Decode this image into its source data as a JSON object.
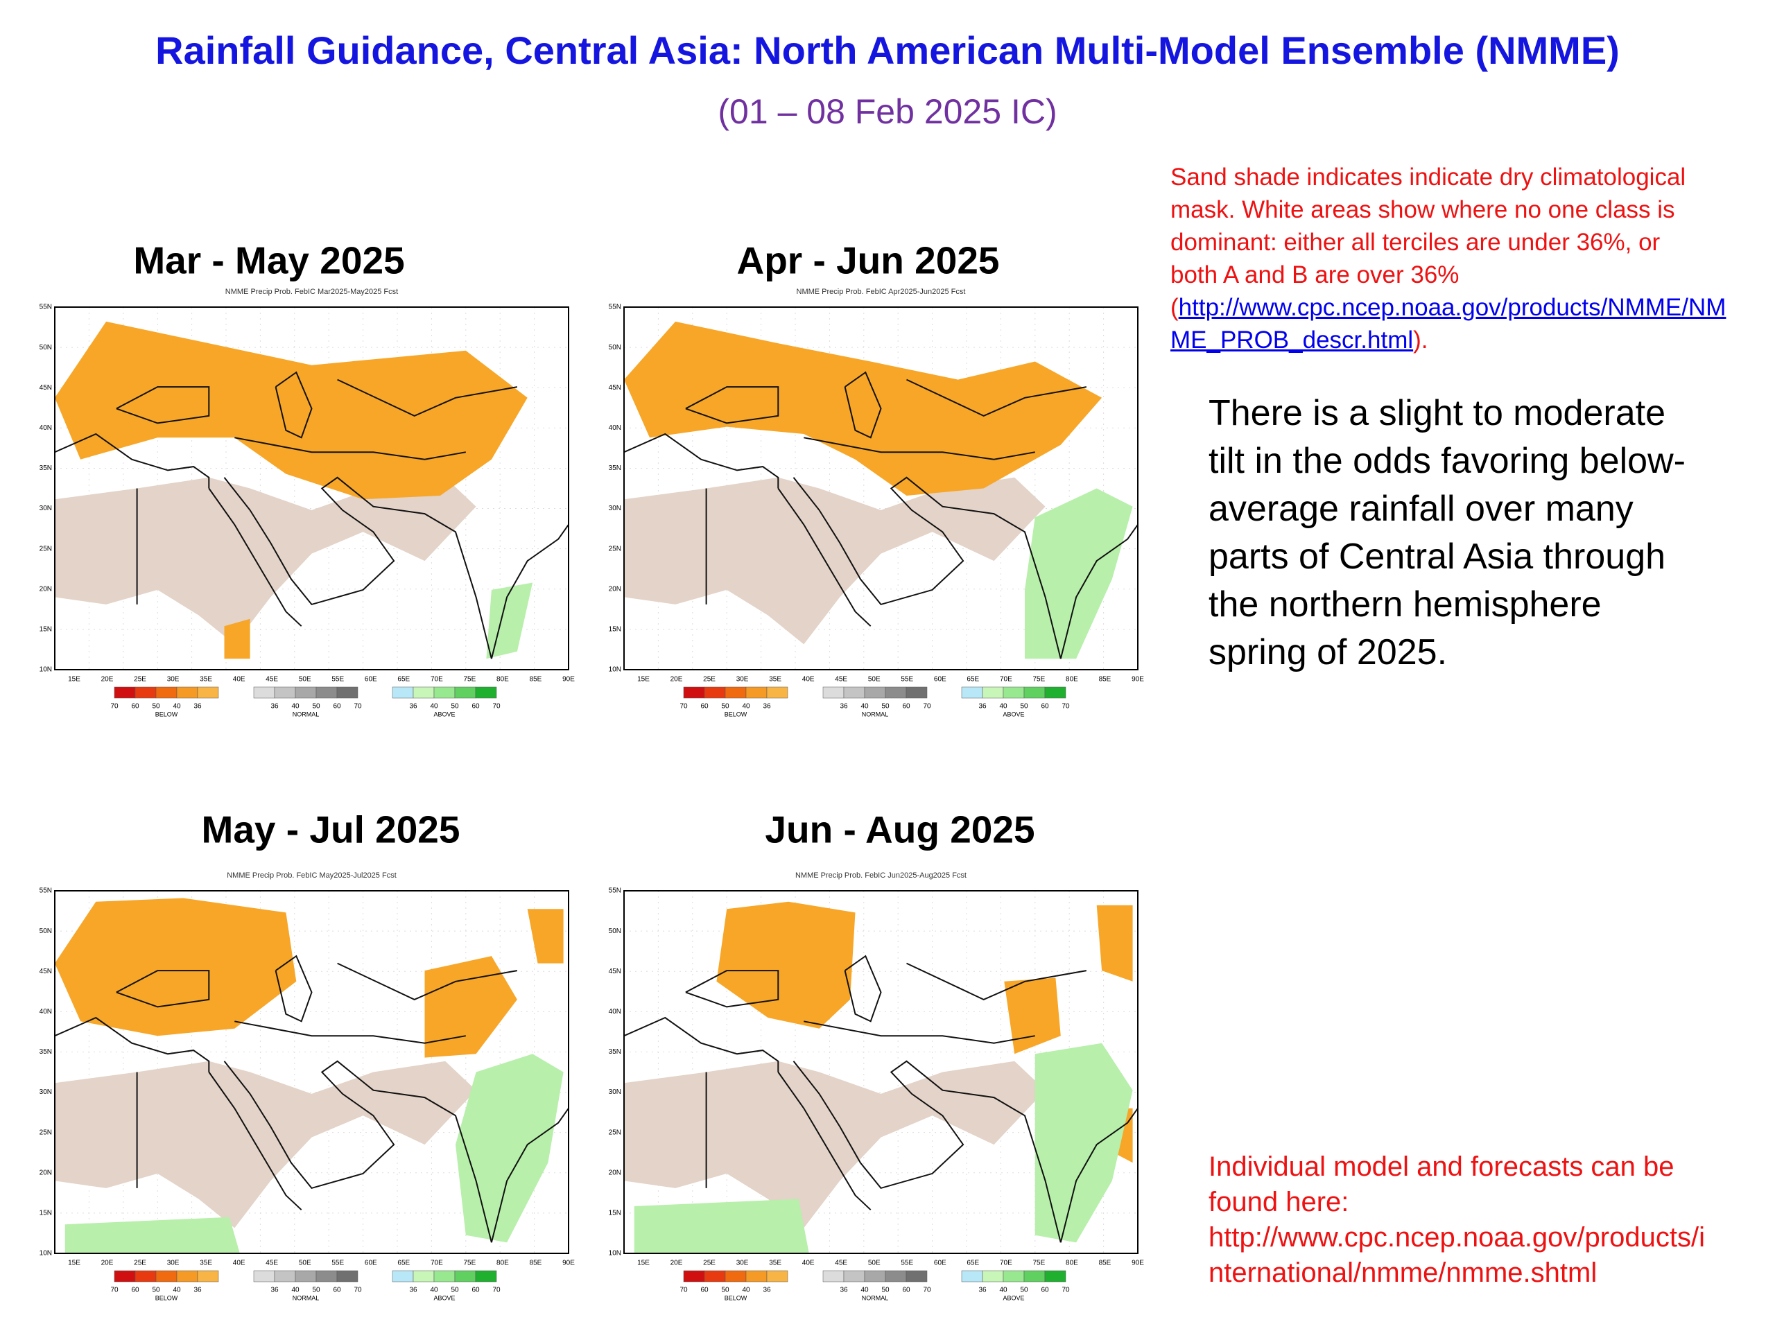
{
  "title": "Rainfall Guidance, Central Asia: North American Multi-Model Ensemble (NMME)",
  "subtitle": "(01 – 08 Feb 2025 IC)",
  "note": {
    "lines": [
      "Sand shade indicates indicate dry climatological",
      "mask. White areas show where no one class is",
      "dominant: either all terciles are under 36%, or",
      "both A and B are over 36%"
    ],
    "open": "(",
    "link": [
      "http://www.cpc.ncep.noaa.gov/products/NMME/NM",
      "ME_PROB_descr.html"
    ],
    "close": ")."
  },
  "summary": [
    "There is a slight to moderate",
    "tilt in the odds favoring below-",
    "average rainfall over many",
    "parts of Central Asia through",
    "the northern hemisphere",
    "spring of 2025."
  ],
  "models": [
    "Individual model and  forecasts can be",
    "found here:",
    "http://www.cpc.ncep.noaa.gov/products/i",
    "nternational/nmme/nmme.shtml"
  ],
  "panels": [
    {
      "title": "Mar - May 2025",
      "caption": "NMME Precip Prob. FebIC  Mar2025-May2025 Fcst"
    },
    {
      "title": "Apr - Jun 2025",
      "caption": "NMME Precip Prob. FebIC  Apr2025-Jun2025 Fcst"
    },
    {
      "title": "May - Jul 2025",
      "caption": "NMME Precip Prob. FebIC  May2025-Jul2025 Fcst"
    },
    {
      "title": "Jun - Aug 2025",
      "caption": "NMME Precip Prob. FebIC  Jun2025-Aug2025 Fcst"
    }
  ],
  "map": {
    "lat_labels": [
      "55N",
      "50N",
      "45N",
      "40N",
      "35N",
      "30N",
      "25N",
      "20N",
      "15N",
      "10N"
    ],
    "lon_labels": [
      "15E",
      "20E",
      "25E",
      "30E",
      "35E",
      "40E",
      "45E",
      "50E",
      "55E",
      "60E",
      "65E",
      "70E",
      "75E",
      "80E",
      "85E",
      "90E"
    ],
    "legend": [
      {
        "name": "BELOW",
        "values": [
          70,
          60,
          50,
          40,
          36
        ],
        "colors": [
          "#d01010",
          "#e83a10",
          "#f06a10",
          "#f59a25",
          "#f8b545"
        ]
      },
      {
        "name": "NORMAL",
        "values": [
          36,
          40,
          50,
          60,
          70
        ],
        "colors": [
          "#dcdcdc",
          "#c4c4c4",
          "#a8a8a8",
          "#8c8c8c",
          "#707070"
        ]
      },
      {
        "name": "ABOVE",
        "values": [
          36,
          40,
          50,
          60,
          70
        ],
        "colors": [
          "#b8e8f8",
          "#c8f5b8",
          "#98e890",
          "#60d060",
          "#20b030"
        ]
      }
    ]
  }
}
